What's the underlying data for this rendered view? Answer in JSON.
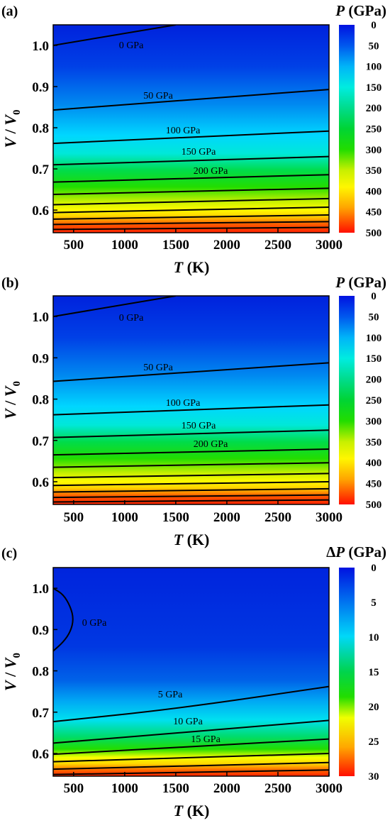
{
  "chart_data": [
    {
      "type": "heatmap",
      "panel": "(a)",
      "xlabel": "T (K)",
      "ylabel": "V / V0",
      "xlim": [
        300,
        3000
      ],
      "ylim": [
        0.545,
        1.05
      ],
      "xticks": [
        "500",
        "1000",
        "1500",
        "2000",
        "2500",
        "3000"
      ],
      "yticks": [
        "0.6",
        "0.7",
        "0.8",
        "0.9",
        "1.0"
      ],
      "colorbar": {
        "title": "P (GPa)",
        "range": [
          0,
          500
        ],
        "ticks": [
          "0",
          "50",
          "100",
          "150",
          "200",
          "250",
          "300",
          "350",
          "400",
          "450",
          "500"
        ]
      },
      "contours": [
        {
          "label": "0 GPa",
          "level": 0,
          "points": [
            [
              300,
              1.0
            ],
            [
              1500,
              1.05
            ]
          ]
        },
        {
          "label": "50 GPa",
          "level": 50,
          "points": [
            [
              300,
              0.843
            ],
            [
              3000,
              0.893
            ]
          ]
        },
        {
          "label": "100 GPa",
          "level": 100,
          "points": [
            [
              300,
              0.762
            ],
            [
              3000,
              0.792
            ]
          ]
        },
        {
          "label": "150 GPa",
          "level": 150,
          "points": [
            [
              300,
              0.71
            ],
            [
              3000,
              0.73
            ]
          ]
        },
        {
          "label": "200 GPa",
          "level": 200,
          "points": [
            [
              300,
              0.668
            ],
            [
              3000,
              0.686
            ]
          ]
        },
        {
          "label": "",
          "level": 250,
          "points": [
            [
              300,
              0.638
            ],
            [
              3000,
              0.653
            ]
          ]
        },
        {
          "label": "",
          "level": 300,
          "points": [
            [
              300,
              0.613
            ],
            [
              3000,
              0.628
            ]
          ]
        },
        {
          "label": "",
          "level": 350,
          "points": [
            [
              300,
              0.594
            ],
            [
              3000,
              0.607
            ]
          ]
        },
        {
          "label": "",
          "level": 400,
          "points": [
            [
              300,
              0.578
            ],
            [
              3000,
              0.588
            ]
          ]
        },
        {
          "label": "",
          "level": 450,
          "points": [
            [
              300,
              0.565
            ],
            [
              3000,
              0.572
            ]
          ]
        },
        {
          "label": "",
          "level": 500,
          "points": [
            [
              300,
              0.553
            ],
            [
              3000,
              0.558
            ]
          ]
        }
      ]
    },
    {
      "type": "heatmap",
      "panel": "(b)",
      "xlabel": "T (K)",
      "ylabel": "V / V0",
      "xlim": [
        300,
        3000
      ],
      "ylim": [
        0.545,
        1.05
      ],
      "xticks": [
        "500",
        "1000",
        "1500",
        "2000",
        "2500",
        "3000"
      ],
      "yticks": [
        "0.6",
        "0.7",
        "0.8",
        "0.9",
        "1.0"
      ],
      "colorbar": {
        "title": "P (GPa)",
        "range": [
          0,
          500
        ],
        "ticks": [
          "0",
          "50",
          "100",
          "150",
          "200",
          "250",
          "300",
          "350",
          "400",
          "450",
          "500"
        ]
      },
      "contours": [
        {
          "label": "0 GPa",
          "level": 0,
          "points": [
            [
              300,
              1.0
            ],
            [
              1500,
              1.05
            ]
          ]
        },
        {
          "label": "50 GPa",
          "level": 50,
          "points": [
            [
              300,
              0.843
            ],
            [
              3000,
              0.888
            ]
          ]
        },
        {
          "label": "100 GPa",
          "level": 100,
          "points": [
            [
              300,
              0.762
            ],
            [
              3000,
              0.786
            ]
          ]
        },
        {
          "label": "150 GPa",
          "level": 150,
          "points": [
            [
              300,
              0.707
            ],
            [
              3000,
              0.725
            ]
          ]
        },
        {
          "label": "200 GPa",
          "level": 200,
          "points": [
            [
              300,
              0.665
            ],
            [
              3000,
              0.679
            ]
          ]
        },
        {
          "label": "",
          "level": 250,
          "points": [
            [
              300,
              0.635
            ],
            [
              3000,
              0.646
            ]
          ]
        },
        {
          "label": "",
          "level": 300,
          "points": [
            [
              300,
              0.61
            ],
            [
              3000,
              0.62
            ]
          ]
        },
        {
          "label": "",
          "level": 350,
          "points": [
            [
              300,
              0.591
            ],
            [
              3000,
              0.6
            ]
          ]
        },
        {
          "label": "",
          "level": 400,
          "points": [
            [
              300,
              0.575
            ],
            [
              3000,
              0.583
            ]
          ]
        },
        {
          "label": "",
          "level": 450,
          "points": [
            [
              300,
              0.562
            ],
            [
              3000,
              0.568
            ]
          ]
        },
        {
          "label": "",
          "level": 500,
          "points": [
            [
              300,
              0.551
            ],
            [
              3000,
              0.556
            ]
          ]
        }
      ]
    },
    {
      "type": "heatmap",
      "panel": "(c)",
      "xlabel": "T (K)",
      "ylabel": "V / V0",
      "xlim": [
        300,
        3000
      ],
      "ylim": [
        0.545,
        1.05
      ],
      "xticks": [
        "500",
        "1000",
        "1500",
        "2000",
        "2500",
        "3000"
      ],
      "yticks": [
        "0.6",
        "0.7",
        "0.8",
        "0.9",
        "1.0"
      ],
      "colorbar": {
        "title": "ΔP (GPa)",
        "range": [
          0,
          30
        ],
        "ticks": [
          "0",
          "5",
          "10",
          "15",
          "20",
          "25",
          "30"
        ]
      },
      "contours": [
        {
          "label": "0 GPa",
          "level": 0,
          "points": [
            [
              300,
              1.0
            ],
            [
              400,
              0.985
            ],
            [
              470,
              0.955
            ],
            [
              500,
              0.925
            ],
            [
              470,
              0.895
            ],
            [
              400,
              0.87
            ],
            [
              300,
              0.848
            ]
          ]
        },
        {
          "label": "5 GPa",
          "level": 5,
          "points": [
            [
              300,
              0.677
            ],
            [
              1500,
              0.708
            ],
            [
              3000,
              0.762
            ]
          ]
        },
        {
          "label": "10 GPa",
          "level": 10,
          "points": [
            [
              300,
              0.625
            ],
            [
              3000,
              0.68
            ]
          ]
        },
        {
          "label": "15 GPa",
          "level": 15,
          "points": [
            [
              300,
              0.598
            ],
            [
              3000,
              0.635
            ]
          ]
        },
        {
          "label": "",
          "level": 20,
          "points": [
            [
              300,
              0.58
            ],
            [
              3000,
              0.6
            ]
          ]
        },
        {
          "label": "",
          "level": 25,
          "points": [
            [
              300,
              0.562
            ],
            [
              3000,
              0.578
            ]
          ]
        },
        {
          "label": "",
          "level": 30,
          "points": [
            [
              300,
              0.549
            ],
            [
              3000,
              0.56
            ]
          ]
        }
      ]
    }
  ]
}
